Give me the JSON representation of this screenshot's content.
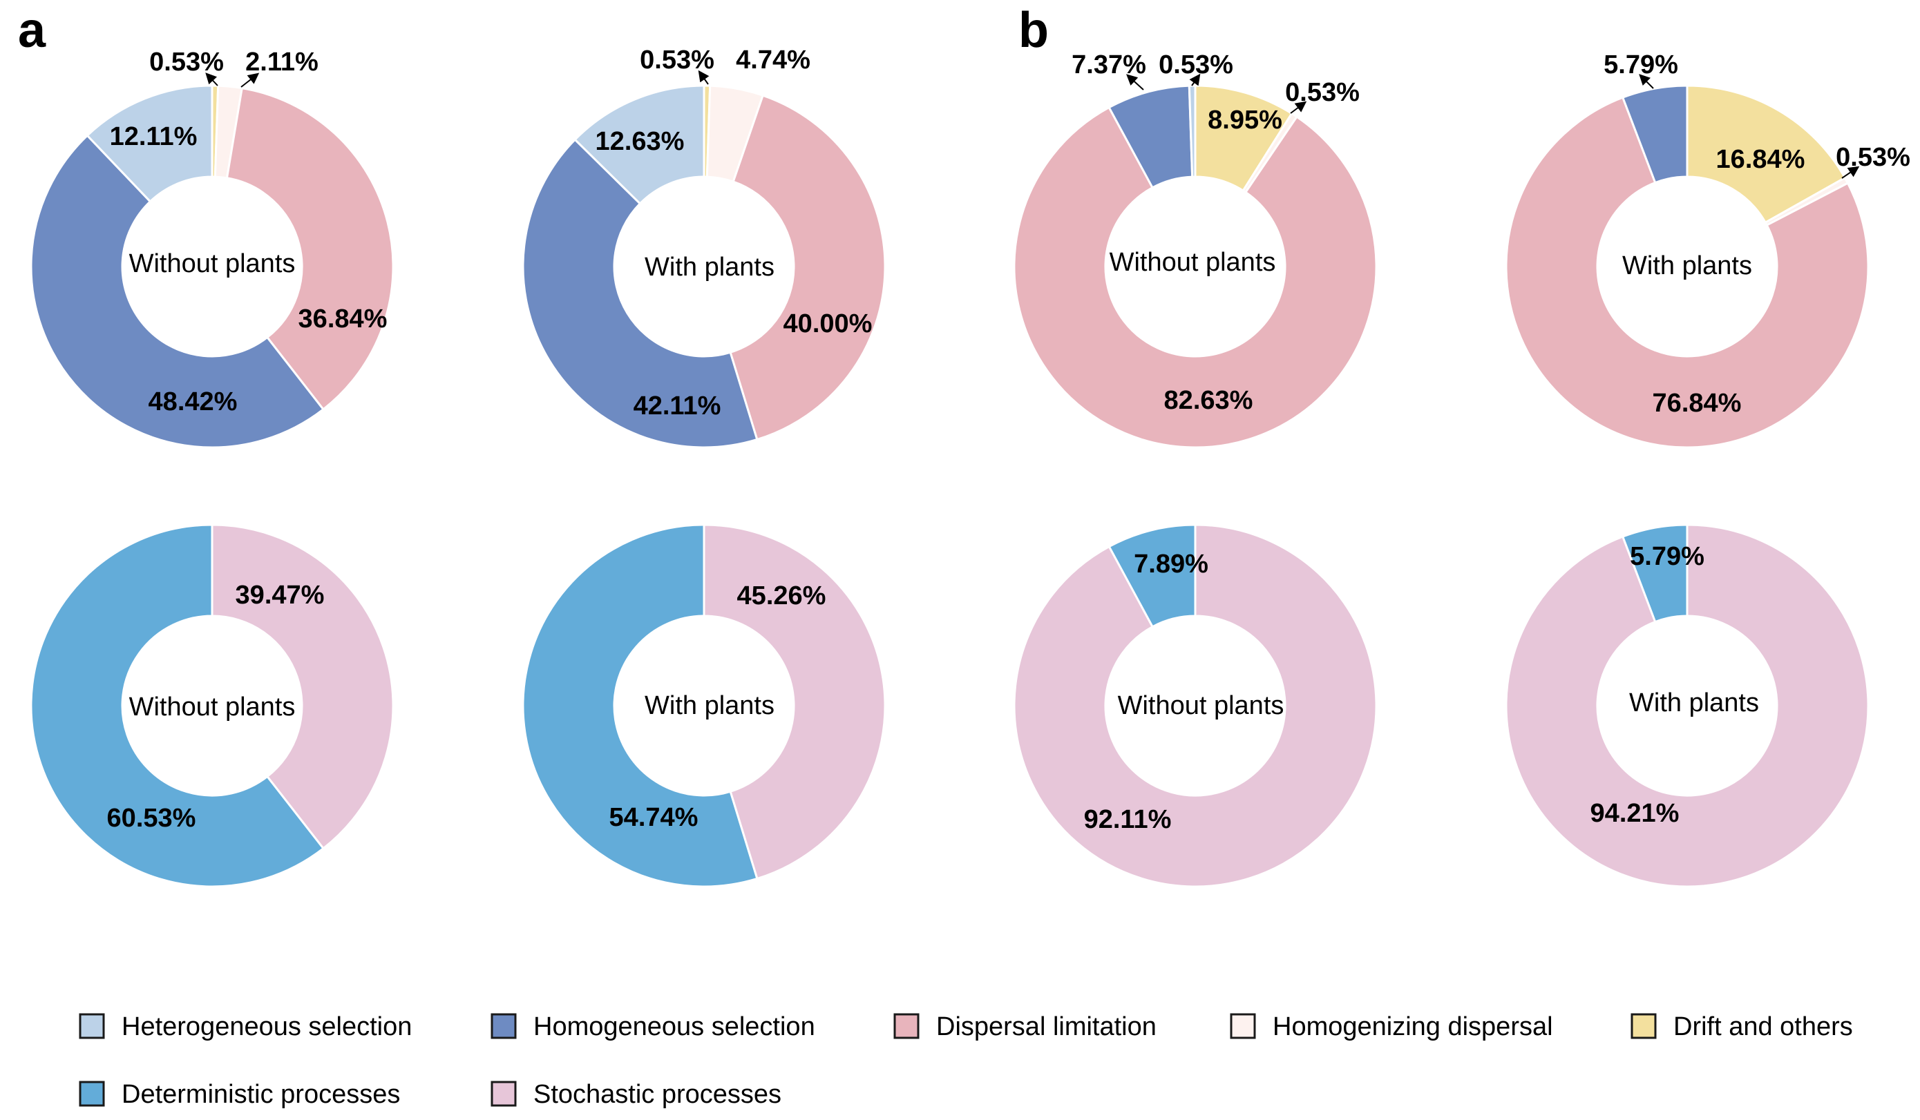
{
  "panels": {
    "a": "a",
    "b": "b"
  },
  "colors": {
    "heterogeneous_selection": "#bcd2e8",
    "homogeneous_selection": "#6e8bc2",
    "dispersal_limitation": "#e8b4bc",
    "homogenizing_dispersal": "#fdf2ef",
    "drift_and_others": "#f3e09e",
    "deterministic_processes": "#63acd9",
    "stochastic_processes": "#e7c6d9"
  },
  "legend": [
    {
      "key": "heterogeneous_selection",
      "label": "Heterogeneous selection"
    },
    {
      "key": "homogeneous_selection",
      "label": "Homogeneous selection"
    },
    {
      "key": "dispersal_limitation",
      "label": "Dispersal limitation"
    },
    {
      "key": "homogenizing_dispersal",
      "label": "Homogenizing dispersal"
    },
    {
      "key": "drift_and_others",
      "label": "Drift and others"
    },
    {
      "key": "deterministic_processes",
      "label": "Deterministic processes"
    },
    {
      "key": "stochastic_processes",
      "label": "Stochastic processes"
    }
  ],
  "chart_data": [
    {
      "type": "pie",
      "panel": "a",
      "row": "processes",
      "title": "Without plants",
      "slices": [
        {
          "key": "drift_and_others",
          "name": "Drift and others",
          "value": 0.53,
          "label": "0.53%"
        },
        {
          "key": "homogenizing_dispersal",
          "name": "Homogenizing dispersal",
          "value": 2.11,
          "label": "2.11%"
        },
        {
          "key": "dispersal_limitation",
          "name": "Dispersal limitation",
          "value": 36.84,
          "label": "36.84%"
        },
        {
          "key": "homogeneous_selection",
          "name": "Homogeneous selection",
          "value": 48.42,
          "label": "48.42%"
        },
        {
          "key": "heterogeneous_selection",
          "name": "Heterogeneous selection",
          "value": 12.11,
          "label": "12.11%"
        }
      ]
    },
    {
      "type": "pie",
      "panel": "a",
      "row": "processes",
      "title": "With plants",
      "slices": [
        {
          "key": "drift_and_others",
          "name": "Drift and others",
          "value": 0.53,
          "label": "0.53%"
        },
        {
          "key": "homogenizing_dispersal",
          "name": "Homogenizing dispersal",
          "value": 4.74,
          "label": "4.74%"
        },
        {
          "key": "dispersal_limitation",
          "name": "Dispersal limitation",
          "value": 40.0,
          "label": "40.00%"
        },
        {
          "key": "homogeneous_selection",
          "name": "Homogeneous selection",
          "value": 42.11,
          "label": "42.11%"
        },
        {
          "key": "heterogeneous_selection",
          "name": "Heterogeneous selection",
          "value": 12.63,
          "label": "12.63%"
        }
      ]
    },
    {
      "type": "pie",
      "panel": "b",
      "row": "processes",
      "title": "Without plants",
      "slices": [
        {
          "key": "drift_and_others",
          "name": "Drift and others",
          "value": 8.95,
          "label": "8.95%"
        },
        {
          "key": "homogenizing_dispersal",
          "name": "Homogenizing dispersal",
          "value": 0.53,
          "label": "0.53%"
        },
        {
          "key": "dispersal_limitation",
          "name": "Dispersal limitation",
          "value": 82.63,
          "label": "82.63%"
        },
        {
          "key": "homogeneous_selection",
          "name": "Homogeneous selection",
          "value": 7.37,
          "label": "7.37%"
        },
        {
          "key": "heterogeneous_selection",
          "name": "Heterogeneous selection",
          "value": 0.53,
          "label": "0.53%"
        }
      ]
    },
    {
      "type": "pie",
      "panel": "b",
      "row": "processes",
      "title": "With plants",
      "slices": [
        {
          "key": "drift_and_others",
          "name": "Drift and others",
          "value": 16.84,
          "label": "16.84%"
        },
        {
          "key": "homogenizing_dispersal",
          "name": "Homogenizing dispersal",
          "value": 0.53,
          "label": "0.53%"
        },
        {
          "key": "dispersal_limitation",
          "name": "Dispersal limitation",
          "value": 76.84,
          "label": "76.84%"
        },
        {
          "key": "homogeneous_selection",
          "name": "Homogeneous selection",
          "value": 5.79,
          "label": "5.79%"
        }
      ]
    },
    {
      "type": "pie",
      "panel": "a",
      "row": "summary",
      "title": "Without plants",
      "slices": [
        {
          "key": "stochastic_processes",
          "name": "Stochastic processes",
          "value": 39.47,
          "label": "39.47%"
        },
        {
          "key": "deterministic_processes",
          "name": "Deterministic processes",
          "value": 60.53,
          "label": "60.53%"
        }
      ]
    },
    {
      "type": "pie",
      "panel": "a",
      "row": "summary",
      "title": "With plants",
      "slices": [
        {
          "key": "stochastic_processes",
          "name": "Stochastic processes",
          "value": 45.26,
          "label": "45.26%"
        },
        {
          "key": "deterministic_processes",
          "name": "Deterministic processes",
          "value": 54.74,
          "label": "54.74%"
        }
      ]
    },
    {
      "type": "pie",
      "panel": "b",
      "row": "summary",
      "title": "Without plants",
      "slices": [
        {
          "key": "stochastic_processes",
          "name": "Stochastic processes",
          "value": 92.11,
          "label": "92.11%"
        },
        {
          "key": "deterministic_processes",
          "name": "Deterministic processes",
          "value": 7.89,
          "label": "7.89%"
        }
      ]
    },
    {
      "type": "pie",
      "panel": "b",
      "row": "summary",
      "title": "With plants",
      "slices": [
        {
          "key": "stochastic_processes",
          "name": "Stochastic processes",
          "value": 94.21,
          "label": "94.21%"
        },
        {
          "key": "deterministic_processes",
          "name": "Deterministic processes",
          "value": 5.79,
          "label": "5.79%"
        }
      ]
    }
  ]
}
